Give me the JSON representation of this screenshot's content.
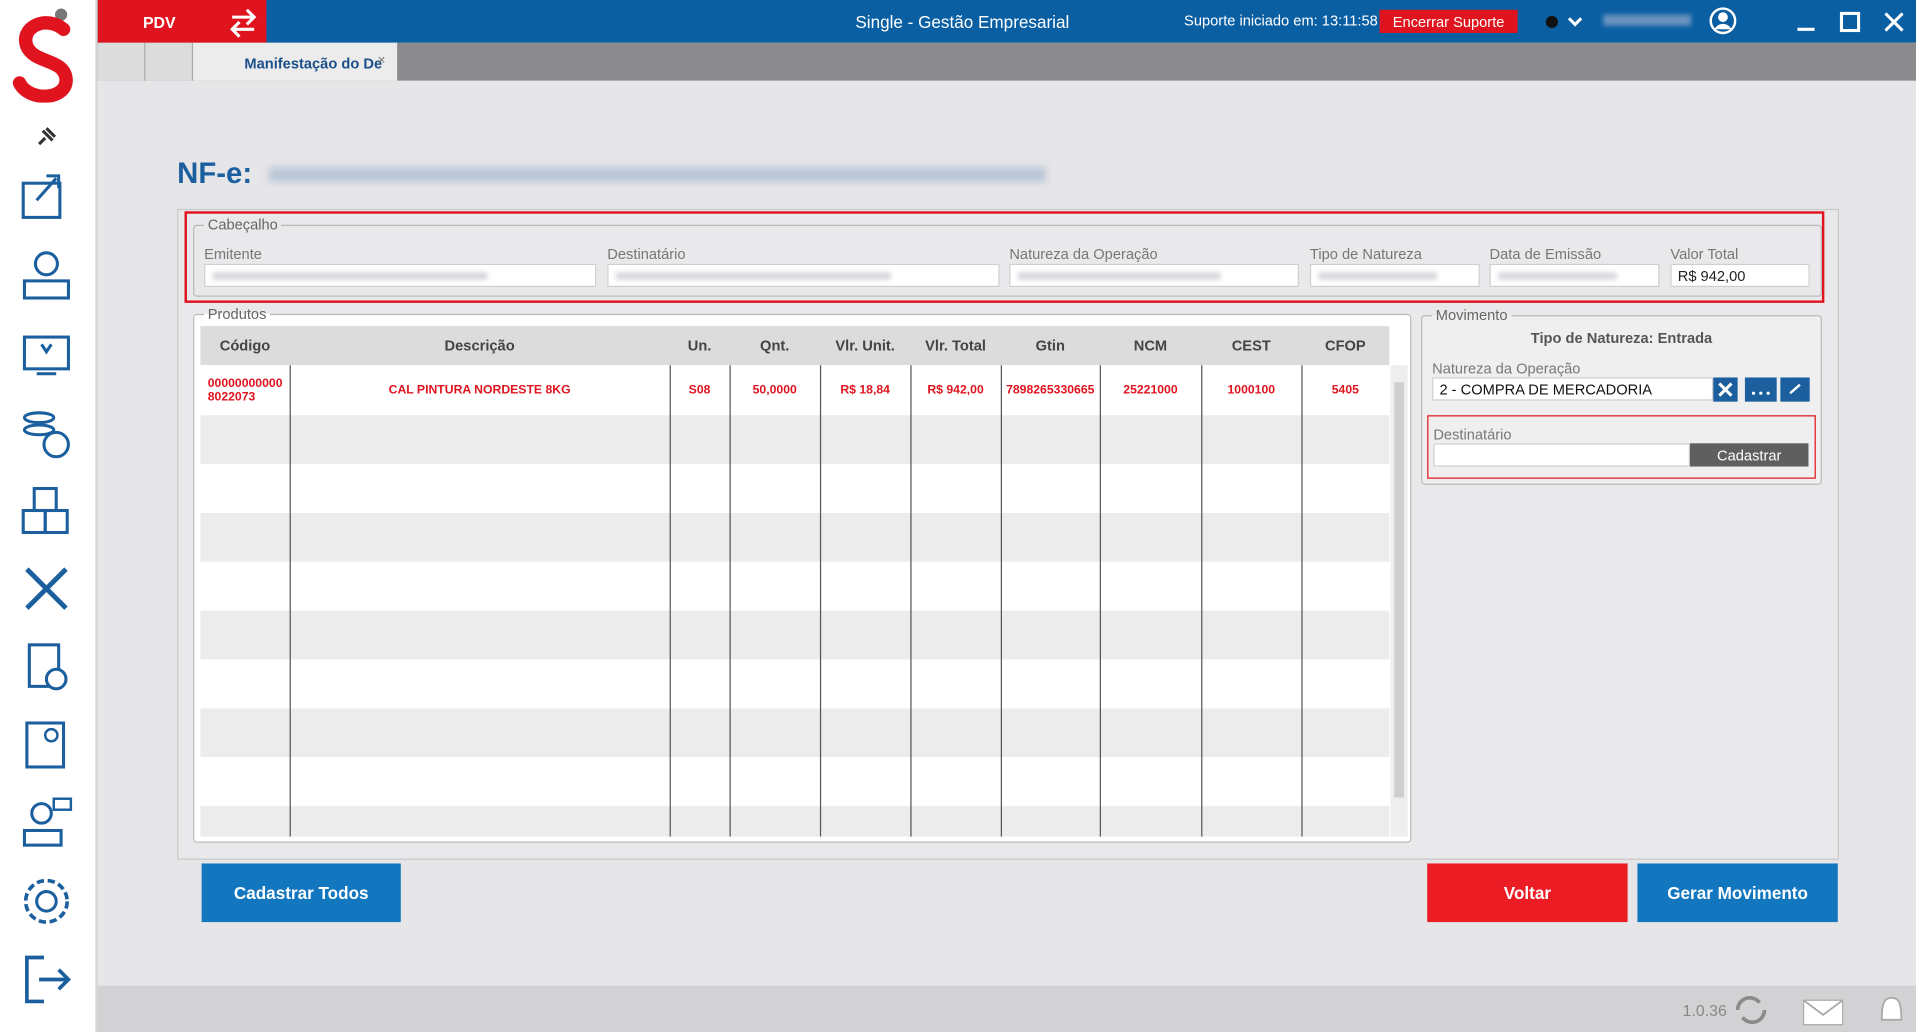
{
  "header": {
    "app_tab": "PDV",
    "title": "Single - Gestão Empresarial",
    "support": "Suporte iniciado em: 13:11:58",
    "end_support": "Encerrar Suporte"
  },
  "tabs": {
    "active": "Manifestação do De"
  },
  "nfe_label": "NF-e:",
  "cabecalho": {
    "legend": "Cabeçalho",
    "fields": [
      {
        "label": "Emitente"
      },
      {
        "label": "Destinatário"
      },
      {
        "label": "Natureza da Operação"
      },
      {
        "label": "Tipo de Natureza"
      },
      {
        "label": "Data de Emissão"
      },
      {
        "label": "Valor Total",
        "value": "R$ 942,00"
      }
    ]
  },
  "produtos": {
    "legend": "Produtos",
    "columns": [
      "Código",
      "Descrição",
      "Un.",
      "Qnt.",
      "Vlr. Unit.",
      "Vlr. Total",
      "Gtin",
      "NCM",
      "CEST",
      "CFOP"
    ],
    "rows": [
      [
        "000000000008022073",
        "CAL PINTURA NORDESTE 8KG",
        "S08",
        "50,0000",
        "R$ 18,84",
        "R$ 942,00",
        "7898265330665",
        "25221000",
        "1000100",
        "5405"
      ]
    ]
  },
  "movimento": {
    "legend": "Movimento",
    "tipo": "Tipo de Natureza: Entrada",
    "natureza_label": "Natureza da Operação",
    "natureza_value": "2 - COMPRA DE MERCADORIA",
    "dest_label": "Destinatário",
    "cadastrar": "Cadastrar"
  },
  "buttons": {
    "cadastrar_todos": "Cadastrar Todos",
    "voltar": "Voltar",
    "gerar": "Gerar Movimento"
  },
  "footer": {
    "version": "1.0.36"
  }
}
